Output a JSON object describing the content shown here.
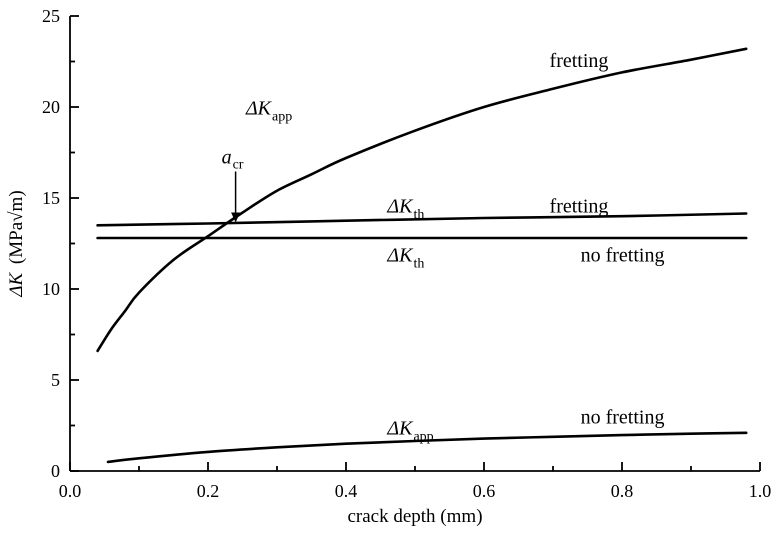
{
  "chart_data": {
    "type": "line",
    "xlabel": "crack depth (mm)",
    "ylabel_prefix": "ΔK",
    "ylabel_units": "(MPa√m)",
    "xlim": [
      0.0,
      1.0
    ],
    "ylim": [
      0,
      25
    ],
    "xticks": [
      0.0,
      0.2,
      0.4,
      0.6,
      0.8,
      1.0
    ],
    "xtick_labels": [
      "0.0",
      "0.2",
      "0.4",
      "0.6",
      "0.8",
      "1.0"
    ],
    "yticks": [
      0,
      5,
      10,
      15,
      20,
      25
    ],
    "ytick_labels": [
      "0",
      "5",
      "10",
      "15",
      "20",
      "25"
    ],
    "grid": false,
    "series": [
      {
        "key": "kapp_fretting",
        "x": [
          0.04,
          0.06,
          0.08,
          0.1,
          0.15,
          0.2,
          0.25,
          0.3,
          0.35,
          0.4,
          0.5,
          0.6,
          0.7,
          0.8,
          0.9,
          0.98
        ],
        "y": [
          6.6,
          7.8,
          8.8,
          9.8,
          11.6,
          12.9,
          14.2,
          15.4,
          16.3,
          17.2,
          18.7,
          20.0,
          21.0,
          21.9,
          22.6,
          23.2
        ]
      },
      {
        "key": "kth_fretting",
        "x": [
          0.04,
          0.2,
          0.4,
          0.6,
          0.8,
          0.98
        ],
        "y": [
          13.5,
          13.6,
          13.75,
          13.9,
          14.0,
          14.15
        ]
      },
      {
        "key": "kth_no_fretting",
        "x": [
          0.04,
          0.98
        ],
        "y": [
          12.8,
          12.8
        ]
      },
      {
        "key": "kapp_no_fretting",
        "x": [
          0.055,
          0.1,
          0.2,
          0.3,
          0.4,
          0.5,
          0.6,
          0.7,
          0.8,
          0.9,
          0.98
        ],
        "y": [
          0.5,
          0.7,
          1.05,
          1.3,
          1.5,
          1.65,
          1.78,
          1.88,
          1.97,
          2.05,
          2.1
        ]
      }
    ],
    "annotations": [
      {
        "key": "lbl_kapp_fretting",
        "main": "ΔK",
        "sub": "app",
        "x": 0.255,
        "y": 19.6
      },
      {
        "key": "lbl_fretting_top",
        "text": "fretting",
        "x": 0.695,
        "y": 22.2
      },
      {
        "key": "lbl_kth_fretting",
        "main": "ΔK",
        "sub": "th",
        "x": 0.46,
        "y": 14.2
      },
      {
        "key": "lbl_fretting_mid",
        "text": "fretting",
        "x": 0.695,
        "y": 14.2
      },
      {
        "key": "lbl_kth_no_fretting",
        "main": "ΔK",
        "sub": "th",
        "x": 0.46,
        "y": 11.5
      },
      {
        "key": "lbl_no_fretting_mid",
        "text": "no fretting",
        "x": 0.74,
        "y": 11.5
      },
      {
        "key": "lbl_kapp_no_fretting",
        "main": "ΔK",
        "sub": "app",
        "x": 0.46,
        "y": 2.0
      },
      {
        "key": "lbl_no_fretting_bottom",
        "text": "no fretting",
        "x": 0.74,
        "y": 2.6
      }
    ],
    "acr": {
      "main": "a",
      "sub": "cr",
      "x": 0.24,
      "y": 13.6
    }
  }
}
